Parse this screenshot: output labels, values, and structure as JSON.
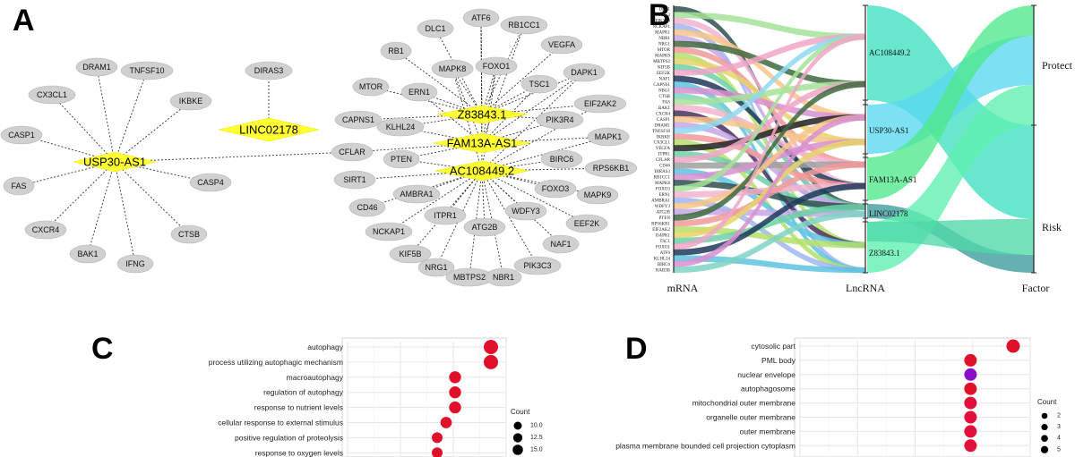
{
  "panels": {
    "A": {
      "letter": "A",
      "hubs": [
        {
          "id": "usp30",
          "label": "USP30-AS1"
        },
        {
          "id": "linc",
          "label": "LINC02178"
        },
        {
          "id": "z83",
          "label": "Z83843.1"
        },
        {
          "id": "fam",
          "label": "FAM13A-AS1"
        },
        {
          "id": "ac",
          "label": "AC108449.2"
        }
      ],
      "nodes": [
        {
          "id": "DRAM1",
          "label": "DRAM1"
        },
        {
          "id": "TNFSF10",
          "label": "TNFSF10"
        },
        {
          "id": "IKBKE",
          "label": "IKBKE"
        },
        {
          "id": "CX3CL1",
          "label": "CX3CL1"
        },
        {
          "id": "CASP1",
          "label": "CASP1"
        },
        {
          "id": "FAS",
          "label": "FAS"
        },
        {
          "id": "CXCR4",
          "label": "CXCR4"
        },
        {
          "id": "BAK1",
          "label": "BAK1"
        },
        {
          "id": "IFNG",
          "label": "IFNG"
        },
        {
          "id": "CTSB",
          "label": "CTSB"
        },
        {
          "id": "CASP4",
          "label": "CASP4"
        },
        {
          "id": "DIRAS3",
          "label": "DIRAS3"
        },
        {
          "id": "CFLAR",
          "label": "CFLAR"
        },
        {
          "id": "ATF6",
          "label": "ATF6"
        },
        {
          "id": "RB1CC1",
          "label": "RB1CC1"
        },
        {
          "id": "DLC1",
          "label": "DLC1"
        },
        {
          "id": "VEGFA",
          "label": "VEGFA"
        },
        {
          "id": "RB1",
          "label": "RB1"
        },
        {
          "id": "FOXO1",
          "label": "FOXO1"
        },
        {
          "id": "MAPK8",
          "label": "MAPK8"
        },
        {
          "id": "DAPK1",
          "label": "DAPK1"
        },
        {
          "id": "MTOR",
          "label": "MTOR"
        },
        {
          "id": "TSC1",
          "label": "TSC1"
        },
        {
          "id": "ERN1",
          "label": "ERN1"
        },
        {
          "id": "EIF2AK2",
          "label": "EIF2AK2"
        },
        {
          "id": "CAPNS1",
          "label": "CAPNS1"
        },
        {
          "id": "KLHL24",
          "label": "KLHL24"
        },
        {
          "id": "PIK3R4",
          "label": "PIK3R4"
        },
        {
          "id": "MAPK1",
          "label": "MAPK1"
        },
        {
          "id": "PTEN",
          "label": "PTEN"
        },
        {
          "id": "BIRC6",
          "label": "BIRC6"
        },
        {
          "id": "RPS6KB1",
          "label": "RPS6KB1"
        },
        {
          "id": "SIRT1",
          "label": "SIRT1"
        },
        {
          "id": "FOXO3",
          "label": "FOXO3"
        },
        {
          "id": "MAPK9",
          "label": "MAPK9"
        },
        {
          "id": "AMBRA1",
          "label": "AMBRA1"
        },
        {
          "id": "CD46",
          "label": "CD46"
        },
        {
          "id": "WDFY3",
          "label": "WDFY3"
        },
        {
          "id": "EEF2K",
          "label": "EEF2K"
        },
        {
          "id": "ITPR1",
          "label": "ITPR1"
        },
        {
          "id": "NCKAP1",
          "label": "NCKAP1"
        },
        {
          "id": "ATG2B",
          "label": "ATG2B"
        },
        {
          "id": "NAF1",
          "label": "NAF1"
        },
        {
          "id": "KIF5B",
          "label": "KIF5B"
        },
        {
          "id": "PIK3C3",
          "label": "PIK3C3"
        },
        {
          "id": "NRG1",
          "label": "NRG1"
        },
        {
          "id": "MBTPS2",
          "label": "MBTPS2"
        },
        {
          "id": "NBR1",
          "label": "NBR1"
        }
      ],
      "edges": [
        [
          "usp30",
          "DRAM1"
        ],
        [
          "usp30",
          "TNFSF10"
        ],
        [
          "usp30",
          "IKBKE"
        ],
        [
          "usp30",
          "CX3CL1"
        ],
        [
          "usp30",
          "CASP1"
        ],
        [
          "usp30",
          "FAS"
        ],
        [
          "usp30",
          "CXCR4"
        ],
        [
          "usp30",
          "BAK1"
        ],
        [
          "usp30",
          "IFNG"
        ],
        [
          "usp30",
          "CTSB"
        ],
        [
          "usp30",
          "CASP4"
        ],
        [
          "usp30",
          "CFLAR"
        ],
        [
          "linc",
          "DIRAS3"
        ],
        [
          "z83",
          "ATF6"
        ],
        [
          "z83",
          "RB1CC1"
        ],
        [
          "z83",
          "DLC1"
        ],
        [
          "z83",
          "VEGFA"
        ],
        [
          "z83",
          "RB1"
        ],
        [
          "z83",
          "FOXO1"
        ],
        [
          "z83",
          "MAPK8"
        ],
        [
          "z83",
          "DAPK1"
        ],
        [
          "z83",
          "MTOR"
        ],
        [
          "z83",
          "TSC1"
        ],
        [
          "z83",
          "ERN1"
        ],
        [
          "z83",
          "EIF2AK2"
        ],
        [
          "z83",
          "CAPNS1"
        ],
        [
          "z83",
          "KLHL24"
        ],
        [
          "z83",
          "PIK3R4"
        ],
        [
          "fam",
          "ATF6"
        ],
        [
          "fam",
          "RB1CC1"
        ],
        [
          "fam",
          "FOXO1"
        ],
        [
          "fam",
          "MAPK8"
        ],
        [
          "fam",
          "DAPK1"
        ],
        [
          "fam",
          "TSC1"
        ],
        [
          "fam",
          "ERN1"
        ],
        [
          "fam",
          "PIK3R4"
        ],
        [
          "fam",
          "MAPK1"
        ],
        [
          "fam",
          "PTEN"
        ],
        [
          "fam",
          "CFLAR"
        ],
        [
          "fam",
          "KLHL24"
        ],
        [
          "ac",
          "ATF6"
        ],
        [
          "ac",
          "FOXO1"
        ],
        [
          "ac",
          "MAPK8"
        ],
        [
          "ac",
          "DAPK1"
        ],
        [
          "ac",
          "EIF2AK2"
        ],
        [
          "ac",
          "BIRC6"
        ],
        [
          "ac",
          "RPS6KB1"
        ],
        [
          "ac",
          "SIRT1"
        ],
        [
          "ac",
          "FOXO3"
        ],
        [
          "ac",
          "MAPK9"
        ],
        [
          "ac",
          "AMBRA1"
        ],
        [
          "ac",
          "CD46"
        ],
        [
          "ac",
          "WDFY3"
        ],
        [
          "ac",
          "EEF2K"
        ],
        [
          "ac",
          "ITPR1"
        ],
        [
          "ac",
          "NCKAP1"
        ],
        [
          "ac",
          "ATG2B"
        ],
        [
          "ac",
          "NAF1"
        ],
        [
          "ac",
          "KIF5B"
        ],
        [
          "ac",
          "PIK3C3"
        ],
        [
          "ac",
          "NRG1"
        ],
        [
          "ac",
          "MBTPS2"
        ],
        [
          "ac",
          "NBR1"
        ],
        [
          "ac",
          "PTEN"
        ],
        [
          "ac",
          "MAPK1"
        ]
      ]
    },
    "B": {
      "letter": "B",
      "axis_labels": {
        "mrna": "mRNA",
        "lncrna": "LncRNA",
        "factor": "Factor"
      },
      "mrna_ticks": [
        "DLC1",
        "PIK3C3",
        "PIK3R4",
        "NCKAP1",
        "MAPK1",
        "NBR1",
        "NRG1",
        "MTOR",
        "MAPK9",
        "MBTPS2",
        "KIF5B",
        "EEF2K",
        "NAF1",
        "CAPNS1",
        "NBG1",
        "CTSB",
        "FAS",
        "BAK1",
        "CXCR4",
        "CASP1",
        "DRAM1",
        "TNFSF10",
        "IKBKE",
        "CX3CL1",
        "VEGFA",
        "ITPR1",
        "CFLAR",
        "CD46",
        "DIRAS3",
        "RB1CC1",
        "MAPK8",
        "FOXO3",
        "ERN1",
        "AMBRA1",
        "WDFY3",
        "ATG2B",
        "PTEN",
        "RPS6KB1",
        "EIF2AK2",
        "DAPK1",
        "TSC1",
        "FOXO1",
        "ATF6",
        "KLHL24",
        "BIRC6",
        "RAB3B"
      ],
      "lncrnas": [
        "AC108449.2",
        "USP30-AS1",
        "FAM13A-AS1",
        "LINC02178",
        "Z83843.1"
      ],
      "factors": [
        "Protect",
        "Risk"
      ]
    },
    "C": {
      "letter": "C",
      "terms": [
        "autophagy",
        "process utilizing autophagic mechanism",
        "macroautophagy",
        "regulation of autophagy",
        "response to nutrient levels",
        "cellular response to external stimulus",
        "positive regulation of proteolysis",
        "response to oxygen levels"
      ],
      "legend": {
        "title": "Count",
        "items": [
          "10.0",
          "12.5",
          "15.0"
        ]
      }
    },
    "D": {
      "letter": "D",
      "terms": [
        "cytosolic part",
        "PML body",
        "nuclear envelope",
        "autophagosome",
        "mitochondrial outer membrane",
        "organelle outer membrane",
        "outer membrane",
        "plasma membrane bounded cell projection cytoplasm"
      ],
      "legend": {
        "title": "Count",
        "items": [
          "2",
          "3",
          "4",
          "5"
        ]
      }
    }
  },
  "chart_data": [
    {
      "type": "scatter",
      "title": "",
      "xlabel": "",
      "ylabel": "",
      "categories": [
        "autophagy",
        "process utilizing autophagic mechanism",
        "macroautophagy",
        "regulation of autophagy",
        "response to nutrient levels",
        "cellular response to external stimulus",
        "positive regulation of proteolysis",
        "response to oxygen levels"
      ],
      "count": [
        16,
        16,
        12,
        12,
        12,
        11,
        10,
        10
      ],
      "color": [
        "#e0102a",
        "#e0102a",
        "#e0102a",
        "#e0102a",
        "#e0102a",
        "#e0102a",
        "#e0102a",
        "#e0102a"
      ],
      "legend": "right"
    },
    {
      "type": "scatter",
      "title": "",
      "xlabel": "",
      "ylabel": "",
      "categories": [
        "cytosolic part",
        "PML body",
        "nuclear envelope",
        "autophagosome",
        "mitochondrial outer membrane",
        "organelle outer membrane",
        "outer membrane",
        "plasma membrane bounded cell projection cytoplasm"
      ],
      "count": [
        5,
        4,
        4,
        4,
        4,
        4,
        4,
        4
      ],
      "color": [
        "#e0102a",
        "#e0102a",
        "#8a10c8",
        "#e0102a",
        "#e0103a",
        "#e0103a",
        "#e0103a",
        "#e0103a"
      ],
      "legend": "right"
    }
  ]
}
